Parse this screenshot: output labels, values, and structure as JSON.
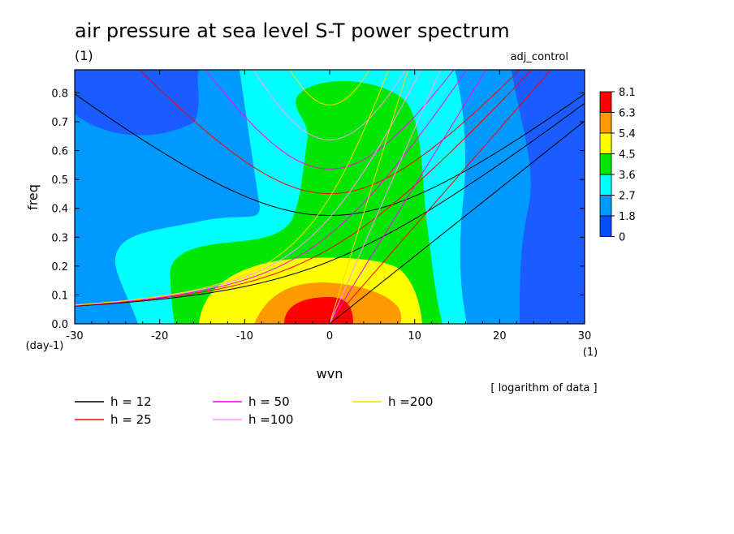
{
  "header": {
    "title": "air pressure at sea level S-T power spectrum",
    "unit": "(1)",
    "run_name": "adj_control",
    "note": "[ logarithm of data ]"
  },
  "chart_data": {
    "type": "heatmap",
    "xlabel": "wvn",
    "x_unit": "(1)",
    "ylabel": "freq",
    "y_unit": "(day-1)",
    "xlim": [
      -30,
      30
    ],
    "ylim": [
      0,
      0.88
    ],
    "x_ticks": [
      -30,
      -20,
      -10,
      0,
      10,
      20,
      30
    ],
    "x_tick_labels": [
      "-30",
      "-20",
      "-10",
      "0",
      "10",
      "20",
      "30"
    ],
    "y_ticks": [
      0.0,
      0.1,
      0.2,
      0.3,
      0.4,
      0.5,
      0.6,
      0.7,
      0.8
    ],
    "y_tick_labels": [
      "0.0",
      "0.1",
      "0.2",
      "0.3",
      "0.4",
      "0.5",
      "0.6",
      "0.7",
      "0.8"
    ],
    "colorbar": {
      "levels": [
        "8.1",
        "6.3",
        "5.4",
        "4.5",
        "3.6",
        "2.7",
        "1.8",
        "0"
      ],
      "colors": [
        "#ff0000",
        "#ff9900",
        "#ffff00",
        "#00e600",
        "#00ffff",
        "#0099ff",
        "#0050ff"
      ]
    },
    "background_color": "#1a5cff",
    "field_peak": {
      "wvn": 0,
      "freq": 0.02
    },
    "dispersion_curves": [
      {
        "name": "h = 12",
        "h": 12,
        "color": "#000000"
      },
      {
        "name": "h = 25",
        "h": 25,
        "color": "#ff0000"
      },
      {
        "name": "h = 50",
        "h": 50,
        "color": "#ff00ff"
      },
      {
        "name": "h =100",
        "h": 100,
        "color": "#ff99ff"
      },
      {
        "name": "h =200",
        "h": 200,
        "color": "#ffd700"
      }
    ]
  }
}
